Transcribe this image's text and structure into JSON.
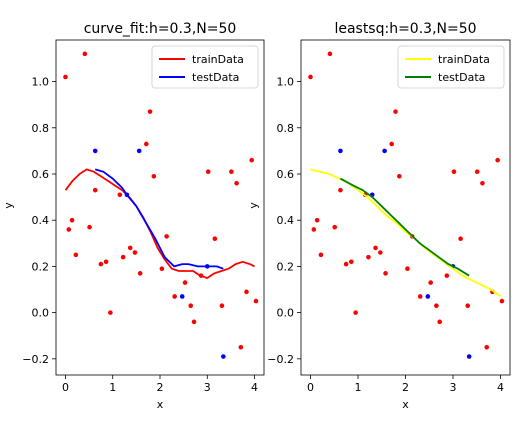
{
  "chart_data": [
    {
      "type": "scatter",
      "title": "curve_fit:h=0.3,N=50",
      "xlabel": "x",
      "ylabel": "y",
      "xlim": [
        -0.2,
        4.2
      ],
      "ylim": [
        -0.27,
        1.18
      ],
      "xticks": [
        0,
        1,
        2,
        3,
        4
      ],
      "yticks": [
        -0.2,
        0.0,
        0.2,
        0.4,
        0.6,
        0.8,
        1.0
      ],
      "ytick_labels": [
        "−0.2",
        "0.0",
        "0.2",
        "0.4",
        "0.6",
        "0.8",
        "1.0"
      ],
      "legend": {
        "location": "upper-right",
        "entries": [
          {
            "label": "trainData",
            "color": "#ff0000"
          },
          {
            "label": "testData",
            "color": "#0000ff"
          }
        ]
      },
      "series": [
        {
          "name": "trainData",
          "kind": "points",
          "color": "#ff0000",
          "x": [
            0.0,
            0.07,
            0.14,
            0.22,
            0.41,
            0.51,
            0.63,
            0.75,
            0.86,
            0.95,
            1.15,
            1.22,
            1.37,
            1.47,
            1.58,
            1.71,
            1.79,
            1.87,
            2.04,
            2.14,
            2.31,
            2.53,
            2.65,
            2.72,
            2.87,
            3.02,
            3.16,
            3.31,
            3.51,
            3.62,
            3.71,
            3.83,
            3.94,
            4.03
          ],
          "y": [
            1.02,
            0.36,
            0.4,
            0.25,
            1.12,
            0.37,
            0.53,
            0.21,
            0.22,
            0.0,
            0.51,
            0.24,
            0.28,
            0.26,
            0.17,
            0.73,
            0.87,
            0.59,
            0.19,
            0.33,
            0.07,
            0.13,
            0.03,
            -0.04,
            0.16,
            0.61,
            0.32,
            0.03,
            0.61,
            0.56,
            -0.15,
            0.09,
            0.66,
            0.05
          ]
        },
        {
          "name": "trainData",
          "kind": "line",
          "color": "#ff0000",
          "x": [
            0,
            0.15,
            0.3,
            0.45,
            0.6,
            0.75,
            0.9,
            1.05,
            1.2,
            1.35,
            1.5,
            1.65,
            1.8,
            1.95,
            2.1,
            2.25,
            2.4,
            2.55,
            2.7,
            2.85,
            3.0,
            3.15,
            3.3,
            3.45,
            3.6,
            3.75,
            3.9,
            4.0
          ],
          "y": [
            0.53,
            0.57,
            0.6,
            0.62,
            0.61,
            0.59,
            0.57,
            0.55,
            0.53,
            0.5,
            0.46,
            0.41,
            0.35,
            0.28,
            0.23,
            0.19,
            0.18,
            0.18,
            0.18,
            0.16,
            0.15,
            0.17,
            0.18,
            0.19,
            0.21,
            0.22,
            0.21,
            0.2
          ]
        },
        {
          "name": "testData",
          "kind": "points",
          "color": "#0000ff",
          "x": [
            0.63,
            1.3,
            1.56,
            2.47,
            3.0,
            3.34
          ],
          "y": [
            0.7,
            0.51,
            0.7,
            0.07,
            0.2,
            -0.19
          ]
        },
        {
          "name": "testData",
          "kind": "line",
          "color": "#0000ff",
          "x": [
            0.63,
            0.8,
            1.0,
            1.2,
            1.3,
            1.5,
            1.7,
            1.9,
            2.1,
            2.3,
            2.47,
            2.6,
            2.8,
            3.0,
            3.2,
            3.34
          ],
          "y": [
            0.62,
            0.61,
            0.58,
            0.54,
            0.51,
            0.46,
            0.39,
            0.32,
            0.24,
            0.2,
            0.21,
            0.21,
            0.2,
            0.2,
            0.2,
            0.19
          ]
        }
      ]
    },
    {
      "type": "scatter",
      "title": "leastsq:h=0.3,N=50",
      "xlabel": "x",
      "ylabel": "y",
      "xlim": [
        -0.2,
        4.2
      ],
      "ylim": [
        -0.27,
        1.18
      ],
      "xticks": [
        0,
        1,
        2,
        3,
        4
      ],
      "yticks": [
        -0.2,
        0.0,
        0.2,
        0.4,
        0.6,
        0.8,
        1.0
      ],
      "ytick_labels": [
        "−0.2",
        "0.0",
        "0.2",
        "0.4",
        "0.6",
        "0.8",
        "1.0"
      ],
      "legend": {
        "location": "upper-right",
        "entries": [
          {
            "label": "trainData",
            "color": "#ffff00"
          },
          {
            "label": "testData",
            "color": "#008000"
          }
        ]
      },
      "series": [
        {
          "name": "trainData",
          "kind": "points",
          "color": "#ff0000",
          "x": [
            0.0,
            0.07,
            0.14,
            0.22,
            0.41,
            0.51,
            0.63,
            0.75,
            0.86,
            0.95,
            1.15,
            1.22,
            1.37,
            1.47,
            1.58,
            1.71,
            1.79,
            1.87,
            2.04,
            2.14,
            2.31,
            2.53,
            2.65,
            2.72,
            2.87,
            3.02,
            3.16,
            3.31,
            3.51,
            3.62,
            3.71,
            3.83,
            3.94,
            4.03
          ],
          "y": [
            1.02,
            0.36,
            0.4,
            0.25,
            1.12,
            0.37,
            0.53,
            0.21,
            0.22,
            0.0,
            0.51,
            0.24,
            0.28,
            0.26,
            0.17,
            0.73,
            0.87,
            0.59,
            0.19,
            0.33,
            0.07,
            0.13,
            0.03,
            -0.04,
            0.16,
            0.61,
            0.32,
            0.03,
            0.61,
            0.56,
            -0.15,
            0.09,
            0.66,
            0.05
          ]
        },
        {
          "name": "trainData",
          "kind": "line",
          "color": "#ffff00",
          "x": [
            0,
            0.2,
            0.4,
            0.6,
            0.8,
            1.0,
            1.2,
            1.4,
            1.6,
            1.8,
            2.0,
            2.2,
            2.4,
            2.6,
            2.8,
            3.0,
            3.2,
            3.4,
            3.6,
            3.8,
            4.0
          ],
          "y": [
            0.62,
            0.61,
            0.6,
            0.58,
            0.56,
            0.53,
            0.5,
            0.46,
            0.42,
            0.39,
            0.35,
            0.32,
            0.28,
            0.25,
            0.22,
            0.19,
            0.16,
            0.14,
            0.12,
            0.1,
            0.07
          ]
        },
        {
          "name": "testData",
          "kind": "points",
          "color": "#0000ff",
          "x": [
            0.63,
            1.3,
            1.56,
            2.47,
            3.0,
            3.34
          ],
          "y": [
            0.7,
            0.51,
            0.7,
            0.07,
            0.2,
            -0.19
          ]
        },
        {
          "name": "testData",
          "kind": "line",
          "color": "#008000",
          "x": [
            0.63,
            0.9,
            1.1,
            1.3,
            1.5,
            1.7,
            1.9,
            2.1,
            2.3,
            2.5,
            2.7,
            2.9,
            3.1,
            3.34
          ],
          "y": [
            0.58,
            0.55,
            0.53,
            0.5,
            0.46,
            0.42,
            0.38,
            0.34,
            0.3,
            0.27,
            0.24,
            0.21,
            0.19,
            0.16
          ]
        }
      ]
    }
  ]
}
